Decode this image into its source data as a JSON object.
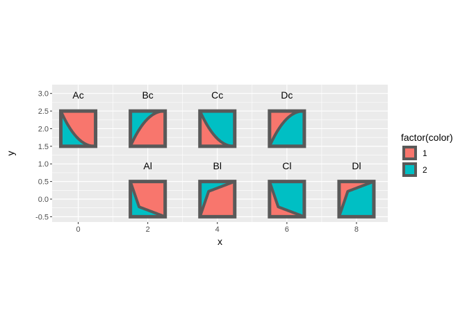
{
  "chart_data": {
    "type": "polygon",
    "xlabel": "x",
    "ylabel": "y",
    "xlim": [
      -0.75,
      8.9
    ],
    "ylim": [
      -0.65,
      3.25
    ],
    "x_ticks": [
      0,
      2,
      4,
      6,
      8
    ],
    "y_ticks": [
      -0.5,
      0.0,
      0.5,
      1.0,
      1.5,
      2.0,
      2.5,
      3.0
    ],
    "x_tick_labels": [
      "0",
      "2",
      "4",
      "6",
      "8"
    ],
    "y_tick_labels": [
      "-0.5",
      "0.0",
      "0.5",
      "1.0",
      "1.5",
      "2.0",
      "2.5",
      "3.0"
    ],
    "grid": true,
    "legend": {
      "title": "factor(color)",
      "position": "right",
      "entries": [
        {
          "label": "1",
          "color": "#F8766D"
        },
        {
          "label": "2",
          "color": "#00BFC4"
        }
      ]
    },
    "outline_color": "#595959",
    "glyphs": [
      {
        "label": "Ac",
        "x": 0,
        "y": 2.0,
        "curve": "concave",
        "direction": "down",
        "upper_color": "#F8766D",
        "lower_color": "#00BFC4"
      },
      {
        "label": "Bc",
        "x": 2,
        "y": 2.0,
        "curve": "convex",
        "direction": "up",
        "upper_color": "#00BFC4",
        "lower_color": "#F8766D"
      },
      {
        "label": "Cc",
        "x": 4,
        "y": 2.0,
        "curve": "concave",
        "direction": "down",
        "upper_color": "#00BFC4",
        "lower_color": "#F8766D"
      },
      {
        "label": "Dc",
        "x": 6,
        "y": 2.0,
        "curve": "convex",
        "direction": "up",
        "upper_color": "#F8766D",
        "lower_color": "#00BFC4"
      },
      {
        "label": "Al",
        "x": 2,
        "y": 0.0,
        "curve": "linear",
        "direction": "down",
        "upper_color": "#F8766D",
        "lower_color": "#00BFC4"
      },
      {
        "label": "Bl",
        "x": 4,
        "y": 0.0,
        "curve": "linear",
        "direction": "up",
        "upper_color": "#00BFC4",
        "lower_color": "#F8766D"
      },
      {
        "label": "Cl",
        "x": 6,
        "y": 0.0,
        "curve": "linear",
        "direction": "down",
        "upper_color": "#00BFC4",
        "lower_color": "#F8766D"
      },
      {
        "label": "Dl",
        "x": 8,
        "y": 0.0,
        "curve": "linear",
        "direction": "up",
        "upper_color": "#F8766D",
        "lower_color": "#00BFC4"
      }
    ]
  }
}
